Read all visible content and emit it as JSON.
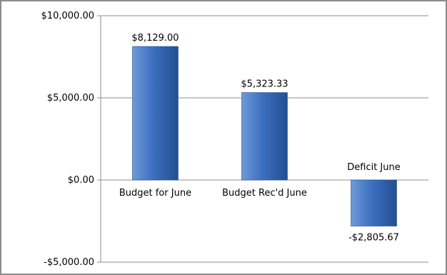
{
  "chart_data": {
    "type": "bar",
    "categories": [
      "Budget for June",
      "Budget Rec'd June",
      "Deficit June"
    ],
    "values": [
      8129.0,
      5323.33,
      -2805.67
    ],
    "data_labels": [
      "$8,129.00",
      "$5,323.33",
      "-$2,805.67"
    ],
    "ylim": [
      -5000,
      10000
    ],
    "yticks": [
      10000,
      5000,
      0,
      -5000
    ],
    "ytick_labels": [
      "$10,000.00",
      "$5,000.00",
      "$0.00",
      "-$5,000.00"
    ],
    "grid": true,
    "legend": "none",
    "colors": {
      "bar_light": "#6f9ad8",
      "bar_mid": "#3c6fc0",
      "bar_dark": "#234f92",
      "grid": "#8c8c8c",
      "frame": "#8c8c8c"
    }
  }
}
